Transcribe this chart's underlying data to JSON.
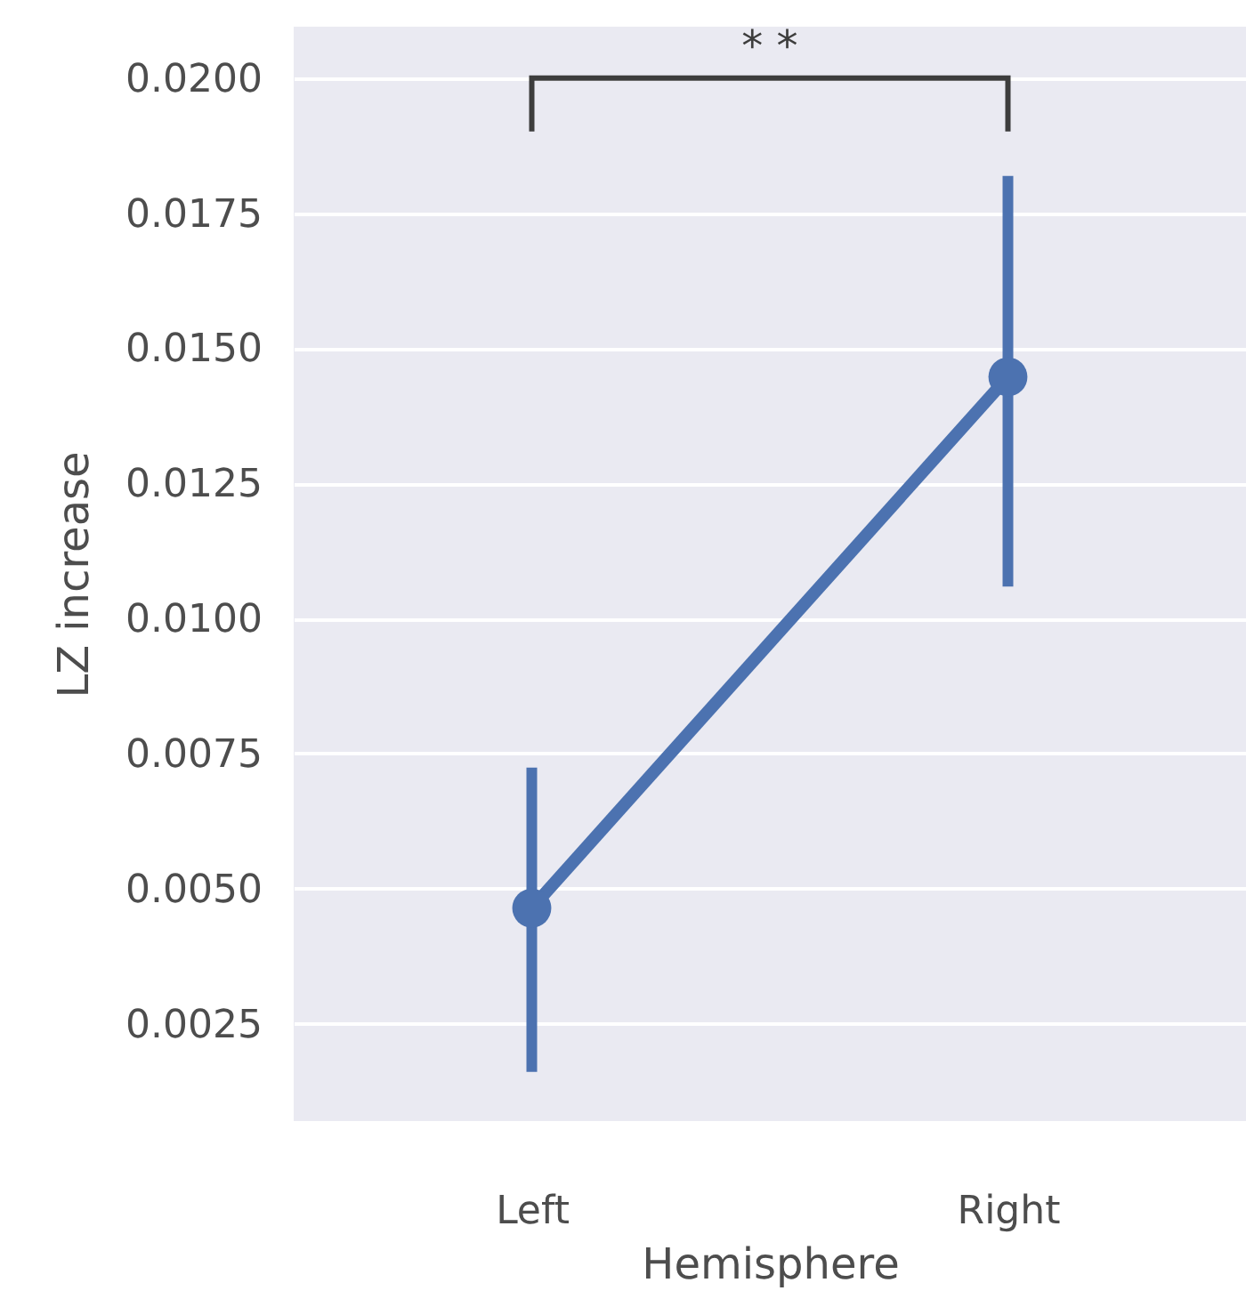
{
  "chart_data": {
    "type": "line",
    "xlabel": "Hemisphere",
    "ylabel": "LZ increase",
    "categories": [
      "Left",
      "Right"
    ],
    "series": [
      {
        "color": "#4c72b0",
        "values": [
          0.00464,
          0.01447
        ],
        "errors": [
          [
            0.00161,
            0.00724
          ],
          [
            0.01059,
            0.01819
          ]
        ]
      }
    ],
    "ylim": [
      0.0007,
      0.02095
    ],
    "yticks": [
      {
        "value": 0.0025,
        "label": "0.0025"
      },
      {
        "value": 0.005,
        "label": "0.0050"
      },
      {
        "value": 0.0075,
        "label": "0.0075"
      },
      {
        "value": 0.01,
        "label": "0.0100"
      },
      {
        "value": 0.0125,
        "label": "0.0125"
      },
      {
        "value": 0.015,
        "label": "0.0150"
      },
      {
        "value": 0.0175,
        "label": "0.0175"
      },
      {
        "value": 0.02,
        "label": "0.0200"
      }
    ],
    "grid": "y",
    "marker": "circle",
    "annotations": [
      "* *"
    ]
  }
}
